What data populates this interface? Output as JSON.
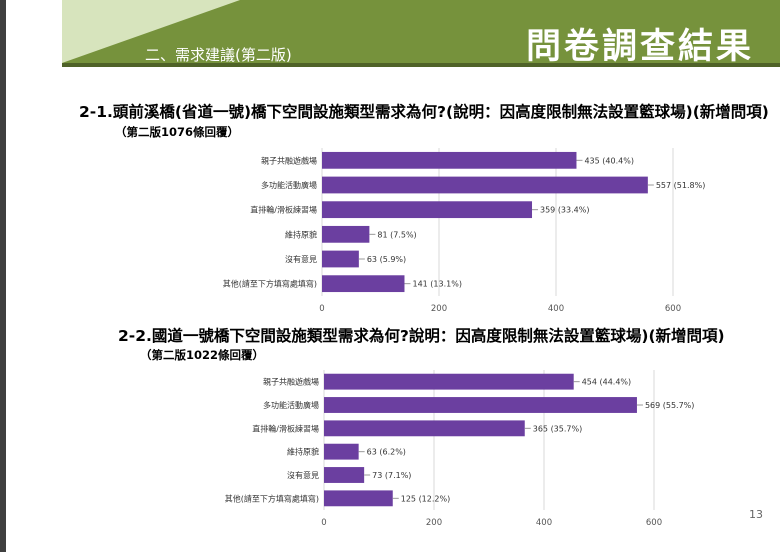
{
  "slide": {
    "section_title": "二、需求建議(第二版)",
    "main_title": "問卷調查結果",
    "page_number": "13"
  },
  "colors": {
    "banner": "#76923c",
    "banner_edge": "#4f6228",
    "triangle": "#d7e4bd",
    "bar": "#6b3fa0",
    "grid": "#d9d9d9"
  },
  "questions": [
    {
      "title": "2-1.頭前溪橋(省道一號)橋下空間設施類型需求為何?(說明：因高度限制無法設置籃球場)(新增問項)",
      "subtitle": "（第二版1076條回覆）"
    },
    {
      "title": "2-2.國道一號橋下空間設施類型需求為何?說明：因高度限制無法設置籃球場)(新增問項)",
      "subtitle": "（第二版1022條回覆）"
    }
  ],
  "chart_data": [
    {
      "type": "bar",
      "orientation": "horizontal",
      "categories": [
        "親子共融遊戲場",
        "多功能活動廣場",
        "直排輪/滑板練習場",
        "維持原貌",
        "沒有意見",
        "其他(請至下方填寫處填寫)"
      ],
      "values": [
        435,
        557,
        359,
        81,
        63,
        141
      ],
      "data_labels": [
        "435 (40.4%)",
        "557 (51.8%)",
        "359 (33.4%)",
        "81 (7.5%)",
        "63 (5.9%)",
        "141 (13.1%)"
      ],
      "xlim": [
        0,
        600
      ],
      "x_ticks": [
        "0",
        "200",
        "400",
        "600"
      ],
      "grid": true
    },
    {
      "type": "bar",
      "orientation": "horizontal",
      "categories": [
        "親子共融遊戲場",
        "多功能活動廣場",
        "直排輪/滑板練習場",
        "維持原貌",
        "沒有意見",
        "其他(請至下方填寫處填寫)"
      ],
      "values": [
        454,
        569,
        365,
        63,
        73,
        125
      ],
      "data_labels": [
        "454 (44.4%)",
        "569 (55.7%)",
        "365 (35.7%)",
        "63 (6.2%)",
        "73 (7.1%)",
        "125 (12.2%)"
      ],
      "xlim": [
        0,
        600
      ],
      "x_ticks": [
        "0",
        "200",
        "400",
        "600"
      ],
      "grid": true
    }
  ]
}
